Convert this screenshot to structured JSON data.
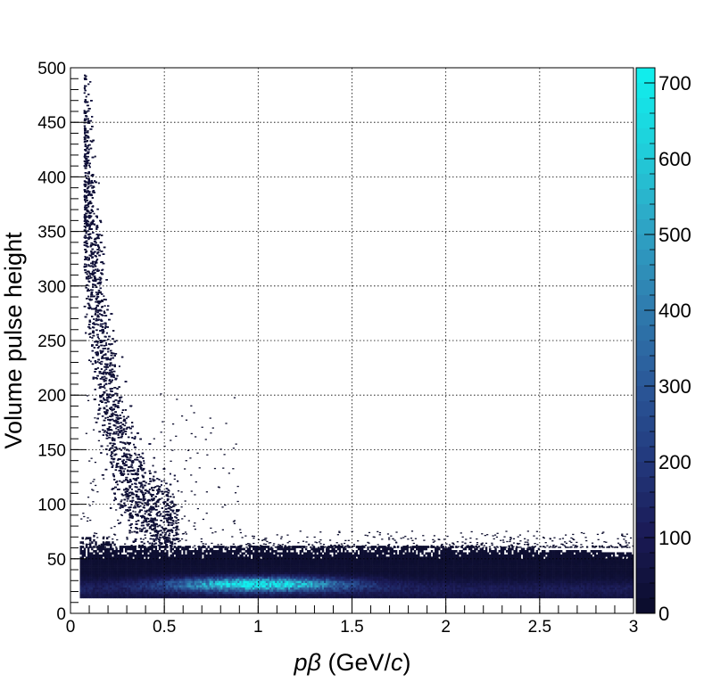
{
  "chart_data": {
    "type": "heatmap",
    "title": "",
    "xlabel": {
      "italic_symbol": "pβ",
      "unit_open": " (GeV/",
      "unit_italic": "c",
      "unit_close": ")"
    },
    "ylabel": "Volume pulse height",
    "xlim": [
      0,
      3
    ],
    "ylim": [
      0,
      500
    ],
    "x_ticks": [
      "0",
      "0.5",
      "1",
      "1.5",
      "2",
      "2.5",
      "3"
    ],
    "y_ticks": [
      "0",
      "50",
      "100",
      "150",
      "200",
      "250",
      "300",
      "350",
      "400",
      "450",
      "500"
    ],
    "grid": true,
    "colorbar": {
      "range": [
        0,
        720
      ],
      "ticks": [
        "0",
        "100",
        "200",
        "300",
        "400",
        "500",
        "600",
        "700"
      ],
      "palette": [
        "#0b0c2a",
        "#1a1a55",
        "#233a7e",
        "#2b5a9a",
        "#2f7fb0",
        "#2ea6c6",
        "#1fd0db",
        "#0ff0ee"
      ]
    },
    "bands": [
      {
        "name": "low-momentum rise",
        "x_range": [
          0.05,
          0.6
        ],
        "y_at_low_x": 420,
        "y_at_high_x": 60
      },
      {
        "name": "minimum-ionizing plateau",
        "x_range": [
          0.05,
          3.0
        ],
        "y_center": 30,
        "y_spread": 20
      },
      {
        "name": "plateau hot spot",
        "x_center": 1.0,
        "y_center": 27,
        "peak_counts": 720
      }
    ]
  }
}
